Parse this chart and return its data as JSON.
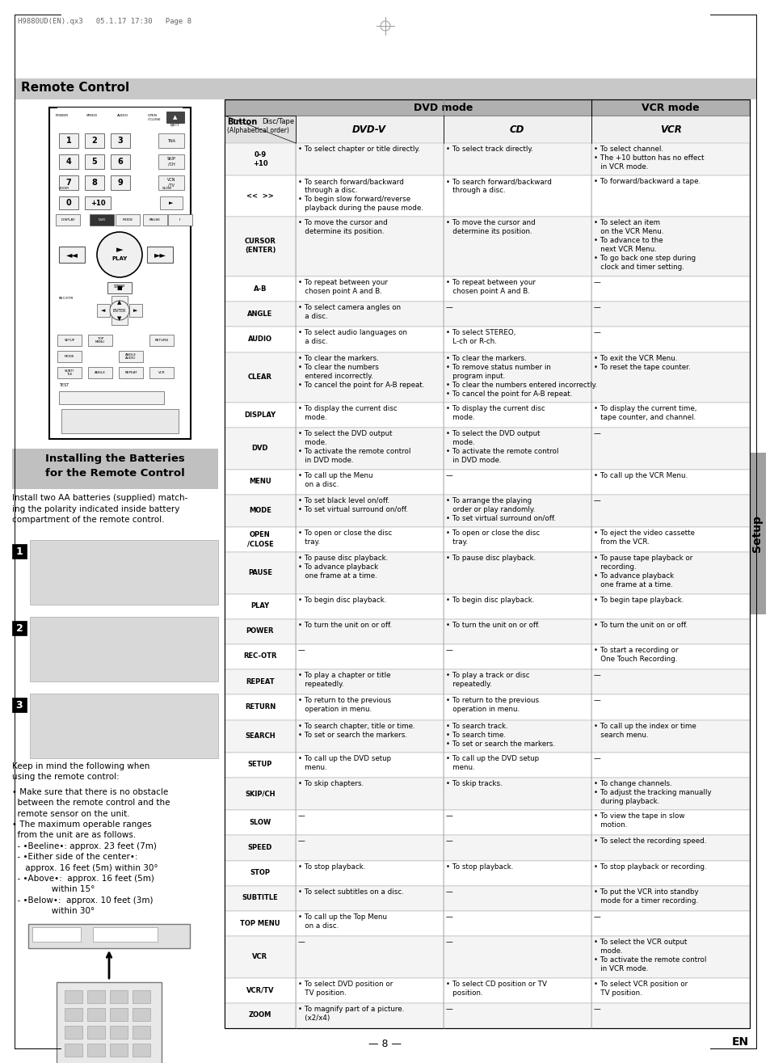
{
  "page_header": "H9880UD(EN).qx3   05.1.17 17:30   Page 8",
  "section_title": "Remote Control",
  "footer_text": "— 8 —",
  "footer_en": "EN",
  "table_rows": [
    {
      "button_label": "0-9\n+10",
      "dvd1": "• To select chapter or title directly.",
      "dvd2": "• To select track directly.",
      "vcr": "• To select channel.\n• The +10 button has no effect\n   in VCR mode."
    },
    {
      "button_label": "<<  >>",
      "dvd1": "• To search forward/backward\n   through a disc.\n• To begin slow forward/reverse\n   playback during the pause mode.",
      "dvd2": "• To search forward/backward\n   through a disc.",
      "vcr": "• To forward/backward a tape."
    },
    {
      "button_label": "CURSOR\n(ENTER)",
      "dvd1": "• To move the cursor and\n   determine its position.",
      "dvd2": "• To move the cursor and\n   determine its position.",
      "vcr": "• To select an item\n   on the VCR Menu.\n• To advance to the\n   next VCR Menu.\n• To go back one step during\n   clock and timer setting."
    },
    {
      "button_label": "A-B",
      "dvd1": "• To repeat between your\n   chosen point A and B.",
      "dvd2": "• To repeat between your\n   chosen point A and B.",
      "vcr": "—"
    },
    {
      "button_label": "ANGLE",
      "dvd1": "• To select camera angles on\n   a disc.",
      "dvd2": "—",
      "vcr": "—"
    },
    {
      "button_label": "AUDIO",
      "dvd1": "• To select audio languages on\n   a disc.",
      "dvd2": "• To select STEREO,\n   L-ch or R-ch.",
      "vcr": "—"
    },
    {
      "button_label": "CLEAR",
      "dvd1": "• To clear the markers.\n• To clear the numbers\n   entered incorrectly.\n• To cancel the point for A-B repeat.",
      "dvd2": "• To clear the markers.\n• To remove status number in\n   program input.\n• To clear the numbers entered incorrectly.\n• To cancel the point for A-B repeat.",
      "vcr": "• To exit the VCR Menu.\n• To reset the tape counter."
    },
    {
      "button_label": "DISPLAY",
      "dvd1": "• To display the current disc\n   mode.",
      "dvd2": "• To display the current disc\n   mode.",
      "vcr": "• To display the current time,\n   tape counter, and channel."
    },
    {
      "button_label": "DVD",
      "dvd1": "• To select the DVD output\n   mode.\n• To activate the remote control\n   in DVD mode.",
      "dvd2": "• To select the DVD output\n   mode.\n• To activate the remote control\n   in DVD mode.",
      "vcr": "—"
    },
    {
      "button_label": "MENU",
      "dvd1": "• To call up the Menu\n   on a disc.",
      "dvd2": "—",
      "vcr": "• To call up the VCR Menu."
    },
    {
      "button_label": "MODE",
      "dvd1": "• To set black level on/off.\n• To set virtual surround on/off.",
      "dvd2": "• To arrange the playing\n   order or play randomly.\n• To set virtual surround on/off.",
      "vcr": "—"
    },
    {
      "button_label": "OPEN\n/CLOSE",
      "dvd1": "• To open or close the disc\n   tray.",
      "dvd2": "• To open or close the disc\n   tray.",
      "vcr": "• To eject the video cassette\n   from the VCR."
    },
    {
      "button_label": "PAUSE",
      "dvd1": "• To pause disc playback.\n• To advance playback\n   one frame at a time.",
      "dvd2": "• To pause disc playback.",
      "vcr": "• To pause tape playback or\n   recording.\n• To advance playback\n   one frame at a time."
    },
    {
      "button_label": "PLAY",
      "dvd1": "• To begin disc playback.",
      "dvd2": "• To begin disc playback.",
      "vcr": "• To begin tape playback."
    },
    {
      "button_label": "POWER",
      "dvd1": "• To turn the unit on or off.",
      "dvd2": "• To turn the unit on or off.",
      "vcr": "• To turn the unit on or off."
    },
    {
      "button_label": "REC-OTR",
      "dvd1": "—",
      "dvd2": "—",
      "vcr": "• To start a recording or\n   One Touch Recording."
    },
    {
      "button_label": "REPEAT",
      "dvd1": "• To play a chapter or title\n   repeatedly.",
      "dvd2": "• To play a track or disc\n   repeatedly.",
      "vcr": "—"
    },
    {
      "button_label": "RETURN",
      "dvd1": "• To return to the previous\n   operation in menu.",
      "dvd2": "• To return to the previous\n   operation in menu.",
      "vcr": "—"
    },
    {
      "button_label": "SEARCH",
      "dvd1": "• To search chapter, title or time.\n• To set or search the markers.",
      "dvd2": "• To search track.\n• To search time.\n• To set or search the markers.",
      "vcr": "• To call up the index or time\n   search menu."
    },
    {
      "button_label": "SETUP",
      "dvd1": "• To call up the DVD setup\n   menu.",
      "dvd2": "• To call up the DVD setup\n   menu.",
      "vcr": "—"
    },
    {
      "button_label": "SKIP/CH",
      "dvd1": "• To skip chapters.",
      "dvd2": "• To skip tracks.",
      "vcr": "• To change channels.\n• To adjust the tracking manually\n   during playback."
    },
    {
      "button_label": "SLOW",
      "dvd1": "—",
      "dvd2": "—",
      "vcr": "• To view the tape in slow\n   motion."
    },
    {
      "button_label": "SPEED",
      "dvd1": "—",
      "dvd2": "—",
      "vcr": "• To select the recording speed."
    },
    {
      "button_label": "STOP",
      "dvd1": "• To stop playback.",
      "dvd2": "• To stop playback.",
      "vcr": "• To stop playback or recording."
    },
    {
      "button_label": "SUBTITLE",
      "dvd1": "• To select subtitles on a disc.",
      "dvd2": "—",
      "vcr": "• To put the VCR into standby\n   mode for a timer recording."
    },
    {
      "button_label": "TOP MENU",
      "dvd1": "• To call up the Top Menu\n   on a disc.",
      "dvd2": "—",
      "vcr": "—"
    },
    {
      "button_label": "VCR",
      "dvd1": "—",
      "dvd2": "—",
      "vcr": "• To select the VCR output\n   mode.\n• To activate the remote control\n   in VCR mode."
    },
    {
      "button_label": "VCR/TV",
      "dvd1": "• To select DVD position or\n   TV position.",
      "dvd2": "• To select CD position or TV\n   position.",
      "vcr": "• To select VCR position or\n   TV position."
    },
    {
      "button_label": "ZOOM",
      "dvd1": "• To magnify part of a picture.\n   (x2/x4)",
      "dvd2": "—",
      "vcr": "—"
    }
  ]
}
